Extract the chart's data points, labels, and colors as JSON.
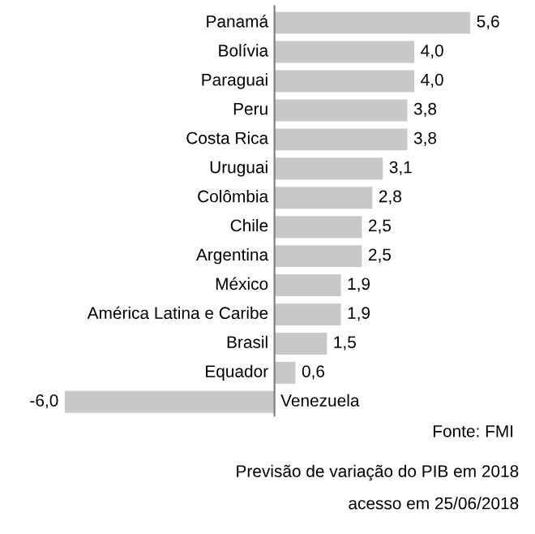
{
  "chart_data": {
    "type": "bar",
    "orientation": "horizontal",
    "categories": [
      "Panamá",
      "Bolívia",
      "Paraguai",
      "Peru",
      "Costa Rica",
      "Uruguai",
      "Colômbia",
      "Chile",
      "Argentina",
      "México",
      "América Latina e Caribe",
      "Brasil",
      "Equador",
      "Venezuela"
    ],
    "values": [
      5.6,
      4.0,
      4.0,
      3.8,
      3.8,
      3.1,
      2.8,
      2.5,
      2.5,
      1.9,
      1.9,
      1.5,
      0.6,
      -6.0
    ],
    "value_labels": [
      "5,6",
      "4,0",
      "4,0",
      "3,8",
      "3,8",
      "3,1",
      "2,8",
      "2,5",
      "2,5",
      "1,9",
      "1,9",
      "1,5",
      "0,6",
      "-6,0"
    ],
    "color": "#c8c8c8",
    "annotations": [
      "Fonte: FMI",
      "Previsão de variação do PIB em 2018",
      "acesso em 25/06/2018"
    ]
  }
}
